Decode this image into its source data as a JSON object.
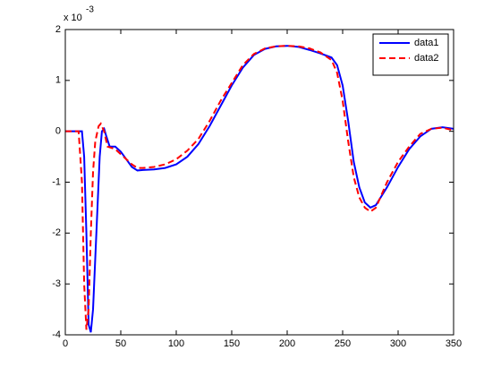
{
  "chart_data": {
    "type": "line",
    "y_multiplier": {
      "base": "x 10",
      "exponent": "-3"
    },
    "xlim": [
      0,
      350
    ],
    "xticks": [
      0,
      50,
      100,
      150,
      200,
      250,
      300,
      350
    ],
    "ylim": [
      -4,
      2
    ],
    "yticks": [
      -4,
      -3,
      -2,
      -1,
      0,
      1,
      2
    ],
    "legend": "top-right",
    "series": [
      {
        "name": "data1",
        "color": "#0000ff",
        "dash": "solid",
        "x": [
          0,
          15,
          17,
          19,
          21,
          23,
          25,
          27,
          29,
          31,
          33,
          35,
          37,
          40,
          45,
          50,
          55,
          60,
          65,
          70,
          80,
          90,
          100,
          110,
          120,
          130,
          140,
          150,
          160,
          170,
          180,
          190,
          200,
          210,
          220,
          230,
          240,
          245,
          250,
          255,
          260,
          265,
          270,
          275,
          280,
          290,
          300,
          310,
          320,
          330,
          340,
          350
        ],
        "values": [
          0,
          0,
          -0.5,
          -2,
          -3.8,
          -3.95,
          -3.5,
          -2.5,
          -1.5,
          -0.5,
          0,
          0.05,
          -0.1,
          -0.3,
          -0.3,
          -0.4,
          -0.55,
          -0.7,
          -0.77,
          -0.76,
          -0.75,
          -0.72,
          -0.65,
          -0.5,
          -0.25,
          0.1,
          0.5,
          0.9,
          1.25,
          1.5,
          1.62,
          1.67,
          1.68,
          1.66,
          1.6,
          1.53,
          1.45,
          1.3,
          0.9,
          0.2,
          -0.6,
          -1.1,
          -1.4,
          -1.5,
          -1.45,
          -1.1,
          -0.7,
          -0.35,
          -0.1,
          0.05,
          0.08,
          0.05
        ]
      },
      {
        "name": "data2",
        "color": "#ff0000",
        "dash": "dashed",
        "x": [
          0,
          12,
          15,
          17,
          19,
          21,
          23,
          25,
          27,
          30,
          32,
          35,
          38,
          45,
          50,
          55,
          60,
          65,
          70,
          80,
          90,
          100,
          110,
          120,
          130,
          140,
          150,
          160,
          170,
          180,
          190,
          200,
          210,
          220,
          230,
          240,
          245,
          250,
          255,
          260,
          265,
          270,
          275,
          280,
          290,
          300,
          310,
          320,
          330,
          340,
          350
        ],
        "values": [
          0,
          0,
          -1,
          -3,
          -3.9,
          -3.5,
          -2,
          -0.8,
          -0.2,
          0.1,
          0.15,
          0,
          -0.3,
          -0.35,
          -0.45,
          -0.55,
          -0.65,
          -0.72,
          -0.72,
          -0.7,
          -0.65,
          -0.55,
          -0.38,
          -0.15,
          0.2,
          0.6,
          0.95,
          1.3,
          1.52,
          1.63,
          1.67,
          1.68,
          1.67,
          1.63,
          1.55,
          1.4,
          1.15,
          0.6,
          -0.2,
          -0.9,
          -1.3,
          -1.5,
          -1.58,
          -1.5,
          -1.0,
          -0.6,
          -0.3,
          -0.05,
          0.05,
          0.07,
          0.02
        ]
      }
    ]
  }
}
